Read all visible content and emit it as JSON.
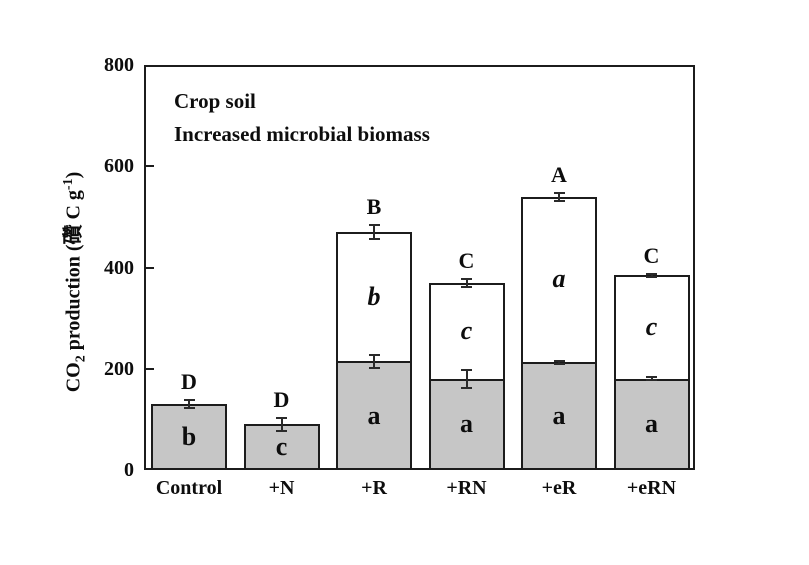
{
  "figure": {
    "background": "#ffffff",
    "annotation": {
      "line1": "Crop soil",
      "line2": "Increased microbial biomass"
    },
    "y_axis": {
      "title_parts": {
        "prefix": "CO",
        "subscript": "2",
        "middle": " production (礸 C g",
        "superscript": "-1",
        "suffix": ")"
      },
      "tick_labels": [
        "0",
        "200",
        "400",
        "600",
        "800"
      ]
    },
    "colors": {
      "gray_fill": "#c6c6c6",
      "white_fill": "#ffffff",
      "frame": "#1c1c1c",
      "text": "#0d0d0d"
    }
  },
  "chart_data": {
    "type": "bar",
    "stacked": true,
    "categories": [
      "Control",
      "+N",
      "+R",
      "+RN",
      "+eR",
      "+eRN"
    ],
    "series": [
      {
        "name": "gray-bottom-segment",
        "fill": "#c6c6c6",
        "values": [
          130,
          90,
          215,
          180,
          213,
          180
        ],
        "errors": [
          10,
          15,
          15,
          20,
          5,
          5
        ],
        "segment_letters": [
          "b",
          "c",
          "a",
          "a",
          "a",
          "a"
        ]
      },
      {
        "name": "white-top-segment",
        "fill": "#ffffff",
        "values": [
          null,
          null,
          255,
          190,
          327,
          205
        ],
        "errors": [
          null,
          null,
          15,
          10,
          10,
          5
        ],
        "segment_letters": [
          null,
          null,
          "b",
          "c",
          "a",
          "c"
        ]
      }
    ],
    "totals": [
      130,
      90,
      470,
      370,
      540,
      385
    ],
    "group_letters": [
      "D",
      "D",
      "B",
      "C",
      "A",
      "C"
    ],
    "annotations": [
      "Crop soil",
      "Increased microbial biomass"
    ],
    "title": "",
    "xlabel": "",
    "ylabel": "CO2 production (礸 C g-1)",
    "ylim": [
      0,
      800
    ],
    "yticks": [
      0,
      200,
      400,
      600,
      800
    ],
    "grid": false,
    "legend": "none"
  }
}
